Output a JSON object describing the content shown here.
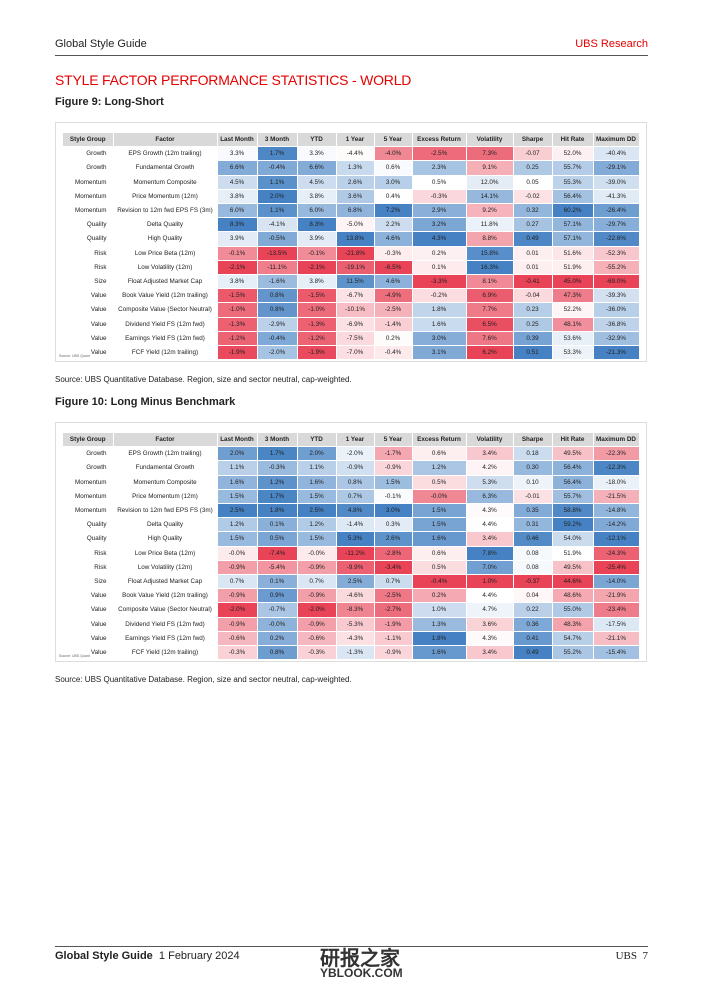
{
  "header": {
    "left": "Global Style Guide",
    "right": "UBS Research"
  },
  "title": "STYLE FACTOR PERFORMANCE STATISTICS - WORLD",
  "figures": [
    {
      "title": "Figure 9: Long-Short",
      "columns": [
        "Style Group",
        "Factor",
        "Last Month",
        "3 Month",
        "YTD",
        "1 Year",
        "5 Year",
        "Excess Return",
        "Volatility",
        "Sharpe",
        "Hit Rate",
        "Maximum DD"
      ],
      "rows": [
        [
          "Growth",
          "EPS Growth (12m trailing)",
          "3.3%",
          "1.7%",
          "3.3%",
          "-4.4%",
          "-4.0%",
          "-2.5%",
          "7.3%",
          "-0.07",
          "52.0%",
          "-40.4%"
        ],
        [
          "Growth",
          "Fundamental Growth",
          "6.6%",
          "-0.4%",
          "6.6%",
          "1.3%",
          "0.6%",
          "2.3%",
          "9.1%",
          "0.25",
          "55.7%",
          "-29.1%"
        ],
        [
          "Momentum",
          "Momentum Composite",
          "4.5%",
          "1.1%",
          "4.5%",
          "2.6%",
          "3.0%",
          "0.5%",
          "12.0%",
          "0.05",
          "55.3%",
          "-39.0%"
        ],
        [
          "Momentum",
          "Price Momentum (12m)",
          "3.8%",
          "2.0%",
          "3.8%",
          "3.6%",
          "0.4%",
          "-0.3%",
          "14.1%",
          "-0.02",
          "56.4%",
          "-41.3%"
        ],
        [
          "Momentum",
          "Revision to 12m fwd EPS FS (3m)",
          "6.0%",
          "1.1%",
          "6.0%",
          "6.8%",
          "7.2%",
          "2.9%",
          "9.2%",
          "0.32",
          "60.2%",
          "-26.4%"
        ],
        [
          "Quality",
          "Delta Quality",
          "8.3%",
          "-4.1%",
          "8.3%",
          "-5.0%",
          "2.2%",
          "3.2%",
          "11.8%",
          "0.27",
          "57.1%",
          "-29.7%"
        ],
        [
          "Quality",
          "High Quality",
          "3.9%",
          "-0.5%",
          "3.9%",
          "13.8%",
          "4.6%",
          "4.3%",
          "8.8%",
          "0.49",
          "57.1%",
          "-22.6%"
        ],
        [
          "Risk",
          "Low Price Beta (12m)",
          "-0.1%",
          "-13.5%",
          "-0.1%",
          "-21.8%",
          "-0.3%",
          "0.2%",
          "15.8%",
          "0.01",
          "51.6%",
          "-52.3%"
        ],
        [
          "Risk",
          "Low Volatility (12m)",
          "-2.1%",
          "-11.1%",
          "-2.1%",
          "-19.1%",
          "-6.5%",
          "0.1%",
          "16.3%",
          "0.01",
          "51.9%",
          "-55.2%"
        ],
        [
          "Size",
          "Float Adjusted Market Cap",
          "3.8%",
          "-1.6%",
          "3.8%",
          "11.5%",
          "4.6%",
          "-3.3%",
          "8.1%",
          "-0.41",
          "45.0%",
          "-69.0%"
        ],
        [
          "Value",
          "Book Value Yield (12m trailing)",
          "-1.5%",
          "0.8%",
          "-1.5%",
          "-6.7%",
          "-4.9%",
          "-0.2%",
          "6.9%",
          "-0.04",
          "47.3%",
          "-39.3%"
        ],
        [
          "Value",
          "Composite Value (Sector Neutral)",
          "-1.0%",
          "0.8%",
          "-1.0%",
          "-10.1%",
          "-2.5%",
          "1.8%",
          "7.7%",
          "0.23",
          "52.2%",
          "-36.0%"
        ],
        [
          "Value",
          "Dividend Yield FS (12m fwd)",
          "-1.3%",
          "-2.9%",
          "-1.3%",
          "-6.9%",
          "-1.4%",
          "1.6%",
          "6.5%",
          "0.25",
          "48.1%",
          "-36.8%"
        ],
        [
          "Value",
          "Earnings Yield FS (12m fwd)",
          "-1.2%",
          "-0.4%",
          "-1.2%",
          "-7.5%",
          "0.2%",
          "3.0%",
          "7.6%",
          "0.39",
          "53.6%",
          "-32.9%"
        ],
        [
          "Value",
          "FCF Yield (12m trailing)",
          "-1.9%",
          "-2.0%",
          "-1.9%",
          "-7.0%",
          "-0.4%",
          "3.1%",
          "6.2%",
          "0.51",
          "53.3%",
          "-21.3%"
        ]
      ],
      "note": "Source: UBS Quant",
      "source": "Source: UBS Quantitative Database. Region, size and sector neutral, cap-weighted."
    },
    {
      "title": "Figure 10: Long Minus Benchmark",
      "columns": [
        "Style Group",
        "Factor",
        "Last Month",
        "3 Month",
        "YTD",
        "1 Year",
        "5 Year",
        "Excess Return",
        "Volatility",
        "Sharpe",
        "Hit Rate",
        "Maximum DD"
      ],
      "rows": [
        [
          "Growth",
          "EPS Growth (12m trailing)",
          "2.0%",
          "1.7%",
          "2.0%",
          "-2.0%",
          "-1.7%",
          "0.6%",
          "3.4%",
          "0.18",
          "49.5%",
          "-22.3%"
        ],
        [
          "Growth",
          "Fundamental Growth",
          "1.1%",
          "-0.3%",
          "1.1%",
          "-0.9%",
          "-0.9%",
          "1.2%",
          "4.2%",
          "0.30",
          "56.4%",
          "-12.3%"
        ],
        [
          "Momentum",
          "Momentum Composite",
          "1.6%",
          "1.2%",
          "1.6%",
          "0.8%",
          "1.5%",
          "0.5%",
          "5.3%",
          "0.10",
          "56.4%",
          "-18.0%"
        ],
        [
          "Momentum",
          "Price Momentum (12m)",
          "1.5%",
          "1.7%",
          "1.5%",
          "0.7%",
          "-0.1%",
          "-0.0%",
          "6.3%",
          "-0.01",
          "55.7%",
          "-21.5%"
        ],
        [
          "Momentum",
          "Revision to 12m fwd EPS FS (3m)",
          "2.5%",
          "1.8%",
          "2.5%",
          "4.8%",
          "3.0%",
          "1.5%",
          "4.3%",
          "0.35",
          "58.8%",
          "-14.8%"
        ],
        [
          "Quality",
          "Delta Quality",
          "1.2%",
          "0.1%",
          "1.2%",
          "-1.4%",
          "0.3%",
          "1.5%",
          "4.4%",
          "0.31",
          "59.2%",
          "-14.2%"
        ],
        [
          "Quality",
          "High Quality",
          "1.5%",
          "0.5%",
          "1.5%",
          "5.3%",
          "2.6%",
          "1.6%",
          "3.4%",
          "0.46",
          "54.0%",
          "-12.1%"
        ],
        [
          "Risk",
          "Low Price Beta (12m)",
          "-0.0%",
          "-7.4%",
          "-0.0%",
          "-11.2%",
          "-2.8%",
          "0.6%",
          "7.8%",
          "0.08",
          "51.9%",
          "-24.3%"
        ],
        [
          "Risk",
          "Low Volatility (12m)",
          "-0.9%",
          "-5.4%",
          "-0.9%",
          "-9.9%",
          "-3.4%",
          "0.5%",
          "7.0%",
          "0.08",
          "49.5%",
          "-25.4%"
        ],
        [
          "Size",
          "Float Adjusted Market Cap",
          "0.7%",
          "0.1%",
          "0.7%",
          "2.5%",
          "0.7%",
          "-0.4%",
          "1.0%",
          "-0.37",
          "44.6%",
          "-14.0%"
        ],
        [
          "Value",
          "Book Value Yield (12m trailing)",
          "-0.9%",
          "0.9%",
          "-0.9%",
          "-4.6%",
          "-2.5%",
          "0.2%",
          "4.4%",
          "0.04",
          "48.6%",
          "-21.9%"
        ],
        [
          "Value",
          "Composite Value (Sector Neutral)",
          "-2.0%",
          "-0.7%",
          "-2.0%",
          "-8.3%",
          "-2.7%",
          "1.0%",
          "4.7%",
          "0.22",
          "55.0%",
          "-23.4%"
        ],
        [
          "Value",
          "Dividend Yield FS (12m fwd)",
          "-0.9%",
          "-0.0%",
          "-0.9%",
          "-5.3%",
          "-1.9%",
          "1.3%",
          "3.6%",
          "0.36",
          "48.3%",
          "-17.5%"
        ],
        [
          "Value",
          "Earnings Yield FS (12m fwd)",
          "-0.6%",
          "0.2%",
          "-0.6%",
          "-4.3%",
          "-1.1%",
          "1.8%",
          "4.3%",
          "0.41",
          "54.7%",
          "-21.1%"
        ],
        [
          "Value",
          "FCF Yield (12m trailing)",
          "-0.3%",
          "0.8%",
          "-0.3%",
          "-1.3%",
          "-0.9%",
          "1.6%",
          "3.4%",
          "0.49",
          "55.2%",
          "-15.4%"
        ]
      ],
      "note": "Source: UBS Quant",
      "source": "Source: UBS Quantitative Database. Region, size and sector neutral, cap-weighted."
    }
  ],
  "footer": {
    "title": "Global Style Guide",
    "date": "1 February 2024",
    "watermark": "研报之家",
    "watermark_url": "YBLOOK.COM",
    "brand": "UBS",
    "page": "7"
  }
}
